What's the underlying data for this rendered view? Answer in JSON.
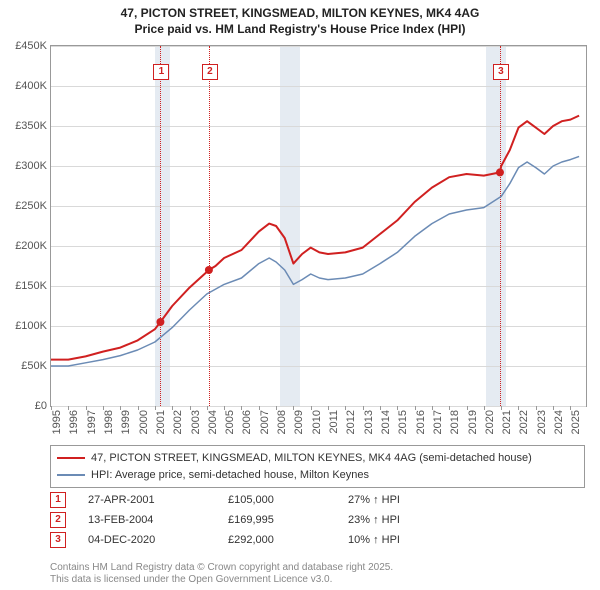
{
  "title_line1": "47, PICTON STREET, KINGSMEAD, MILTON KEYNES, MK4 4AG",
  "title_line2": "Price paid vs. HM Land Registry's House Price Index (HPI)",
  "chart": {
    "type": "line",
    "background_color": "#ffffff",
    "grid_color": "#d9d9d9",
    "x_range": [
      1995,
      2025.9
    ],
    "x_ticks": [
      1995,
      1996,
      1997,
      1998,
      1999,
      2000,
      2001,
      2002,
      2003,
      2004,
      2005,
      2006,
      2007,
      2008,
      2009,
      2010,
      2011,
      2012,
      2013,
      2014,
      2015,
      2016,
      2017,
      2018,
      2019,
      2020,
      2021,
      2022,
      2023,
      2024,
      2025
    ],
    "y_range": [
      0,
      450000
    ],
    "y_ticks": [
      0,
      50000,
      100000,
      150000,
      200000,
      250000,
      300000,
      350000,
      400000,
      450000
    ],
    "y_tick_labels": [
      "£0",
      "£50K",
      "£100K",
      "£150K",
      "£200K",
      "£250K",
      "£300K",
      "£350K",
      "£400K",
      "£450K"
    ],
    "shaded": [
      {
        "from": 2001.0,
        "to": 2001.9
      },
      {
        "from": 2008.2,
        "to": 2009.4
      },
      {
        "from": 2020.1,
        "to": 2021.3
      }
    ],
    "series": [
      {
        "name": "47, PICTON STREET, KINGSMEAD, MILTON KEYNES, MK4 4AG (semi-detached house)",
        "color": "#d02020",
        "line_width": 2,
        "data": [
          [
            1995,
            58000
          ],
          [
            1996,
            58000
          ],
          [
            1997,
            62000
          ],
          [
            1998,
            68000
          ],
          [
            1999,
            73000
          ],
          [
            2000,
            82000
          ],
          [
            2001,
            96000
          ],
          [
            2001.32,
            105000
          ],
          [
            2002,
            125000
          ],
          [
            2003,
            148000
          ],
          [
            2004.12,
            169995
          ],
          [
            2004.5,
            175000
          ],
          [
            2005,
            185000
          ],
          [
            2006,
            195000
          ],
          [
            2007,
            218000
          ],
          [
            2007.6,
            228000
          ],
          [
            2008,
            225000
          ],
          [
            2008.5,
            210000
          ],
          [
            2009,
            178000
          ],
          [
            2009.5,
            190000
          ],
          [
            2010,
            198000
          ],
          [
            2010.5,
            192000
          ],
          [
            2011,
            190000
          ],
          [
            2012,
            192000
          ],
          [
            2013,
            198000
          ],
          [
            2014,
            215000
          ],
          [
            2015,
            232000
          ],
          [
            2016,
            255000
          ],
          [
            2017,
            273000
          ],
          [
            2018,
            286000
          ],
          [
            2019,
            290000
          ],
          [
            2020,
            288000
          ],
          [
            2020.93,
            292000
          ],
          [
            2021,
            300000
          ],
          [
            2021.5,
            320000
          ],
          [
            2022,
            348000
          ],
          [
            2022.5,
            356000
          ],
          [
            2023,
            348000
          ],
          [
            2023.5,
            340000
          ],
          [
            2024,
            350000
          ],
          [
            2024.5,
            356000
          ],
          [
            2025,
            358000
          ],
          [
            2025.5,
            363000
          ]
        ]
      },
      {
        "name": "HPI: Average price, semi-detached house, Milton Keynes",
        "color": "#6b8bb5",
        "line_width": 1.5,
        "data": [
          [
            1995,
            50000
          ],
          [
            1996,
            50000
          ],
          [
            1997,
            54000
          ],
          [
            1998,
            58000
          ],
          [
            1999,
            63000
          ],
          [
            2000,
            70000
          ],
          [
            2001,
            80000
          ],
          [
            2002,
            98000
          ],
          [
            2003,
            120000
          ],
          [
            2004,
            140000
          ],
          [
            2005,
            152000
          ],
          [
            2006,
            160000
          ],
          [
            2007,
            178000
          ],
          [
            2007.6,
            185000
          ],
          [
            2008,
            180000
          ],
          [
            2008.5,
            170000
          ],
          [
            2009,
            152000
          ],
          [
            2009.5,
            158000
          ],
          [
            2010,
            165000
          ],
          [
            2010.5,
            160000
          ],
          [
            2011,
            158000
          ],
          [
            2012,
            160000
          ],
          [
            2013,
            165000
          ],
          [
            2014,
            178000
          ],
          [
            2015,
            192000
          ],
          [
            2016,
            212000
          ],
          [
            2017,
            228000
          ],
          [
            2018,
            240000
          ],
          [
            2019,
            245000
          ],
          [
            2020,
            248000
          ],
          [
            2021,
            262000
          ],
          [
            2021.5,
            278000
          ],
          [
            2022,
            298000
          ],
          [
            2022.5,
            305000
          ],
          [
            2023,
            298000
          ],
          [
            2023.5,
            290000
          ],
          [
            2024,
            300000
          ],
          [
            2024.5,
            305000
          ],
          [
            2025,
            308000
          ],
          [
            2025.5,
            312000
          ]
        ]
      }
    ],
    "sale_markers": [
      {
        "n": "1",
        "x": 2001.32,
        "y": 105000
      },
      {
        "n": "2",
        "x": 2004.12,
        "y": 169995
      },
      {
        "n": "3",
        "x": 2020.93,
        "y": 292000
      }
    ]
  },
  "legend": {
    "items": [
      {
        "label": "47, PICTON STREET, KINGSMEAD, MILTON KEYNES, MK4 4AG (semi-detached house)",
        "color": "#d02020",
        "lw": 2
      },
      {
        "label": "HPI: Average price, semi-detached house, Milton Keynes",
        "color": "#6b8bb5",
        "lw": 1.5
      }
    ]
  },
  "sales": [
    {
      "n": "1",
      "date": "27-APR-2001",
      "price": "£105,000",
      "change": "27% ↑ HPI"
    },
    {
      "n": "2",
      "date": "13-FEB-2004",
      "price": "£169,995",
      "change": "23% ↑ HPI"
    },
    {
      "n": "3",
      "date": "04-DEC-2020",
      "price": "£292,000",
      "change": "10% ↑ HPI"
    }
  ],
  "footer_line1": "Contains HM Land Registry data © Crown copyright and database right 2025.",
  "footer_line2": "This data is licensed under the Open Government Licence v3.0."
}
